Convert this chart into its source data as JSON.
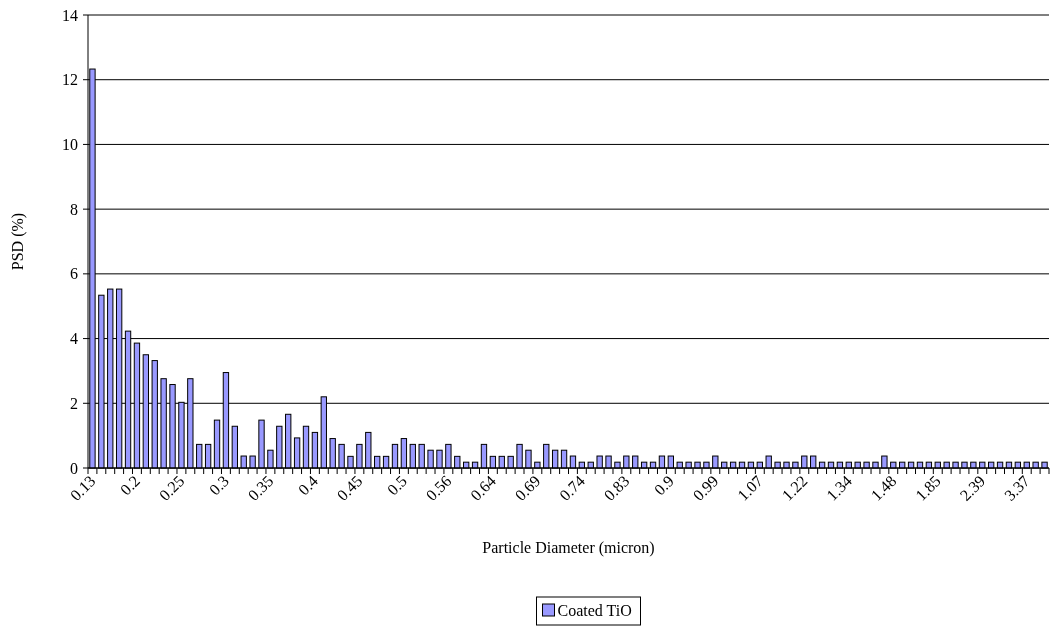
{
  "chart_data": {
    "type": "bar",
    "xlabel": "Particle Diameter (micron)",
    "ylabel": "PSD (%)",
    "categories": [
      "0.13",
      null,
      null,
      null,
      null,
      "0.2",
      null,
      null,
      null,
      null,
      "0.25",
      null,
      null,
      null,
      null,
      "0.3",
      null,
      null,
      null,
      null,
      "0.35",
      null,
      null,
      null,
      null,
      "0.4",
      null,
      null,
      null,
      null,
      "0.45",
      null,
      null,
      null,
      null,
      "0.5",
      null,
      null,
      null,
      null,
      "0.56",
      null,
      null,
      null,
      null,
      "0.64",
      null,
      null,
      null,
      null,
      "0.69",
      null,
      null,
      null,
      null,
      "0.74",
      null,
      null,
      null,
      null,
      "0.83",
      null,
      null,
      null,
      null,
      "0.9",
      null,
      null,
      null,
      null,
      "0.99",
      null,
      null,
      null,
      null,
      "1.07",
      null,
      null,
      null,
      null,
      "1.22",
      null,
      null,
      null,
      null,
      "1.34",
      null,
      null,
      null,
      null,
      "1.48",
      null,
      null,
      null,
      null,
      "1.85",
      null,
      null,
      null,
      null,
      "2.39",
      null,
      null,
      null,
      null,
      "3.37",
      null,
      null
    ],
    "series": [
      {
        "name": "Coated TiO",
        "color": "#9999ff",
        "values": [
          12.33,
          5.34,
          5.53,
          5.53,
          4.23,
          3.86,
          3.5,
          3.32,
          2.76,
          2.58,
          2.03,
          2.76,
          0.73,
          0.73,
          1.48,
          2.95,
          1.29,
          0.37,
          0.37,
          1.48,
          0.55,
          1.29,
          1.66,
          0.93,
          1.29,
          1.1,
          2.2,
          0.91,
          0.73,
          0.36,
          0.73,
          1.1,
          0.36,
          0.36,
          0.73,
          0.91,
          0.73,
          0.73,
          0.55,
          0.55,
          0.73,
          0.36,
          0.18,
          0.18,
          0.73,
          0.36,
          0.36,
          0.36,
          0.73,
          0.55,
          0.18,
          0.73,
          0.55,
          0.55,
          0.37,
          0.18,
          0.18,
          0.37,
          0.37,
          0.18,
          0.37,
          0.37,
          0.18,
          0.18,
          0.37,
          0.37,
          0.18,
          0.18,
          0.18,
          0.18,
          0.37,
          0.18,
          0.18,
          0.18,
          0.18,
          0.18,
          0.37,
          0.18,
          0.18,
          0.18,
          0.37,
          0.37,
          0.18,
          0.18,
          0.18,
          0.18,
          0.18,
          0.18,
          0.18,
          0.37,
          0.18,
          0.18,
          0.18,
          0.18,
          0.18,
          0.18,
          0.18,
          0.18,
          0.18,
          0.18,
          0.18,
          0.18,
          0.18,
          0.18,
          0.18,
          0.18,
          0.18,
          0.18
        ]
      }
    ],
    "ylim": [
      0,
      14
    ],
    "yticks": [
      0,
      2,
      4,
      6,
      8,
      10,
      12,
      14
    ],
    "grid": "y",
    "legend": "bottom"
  }
}
